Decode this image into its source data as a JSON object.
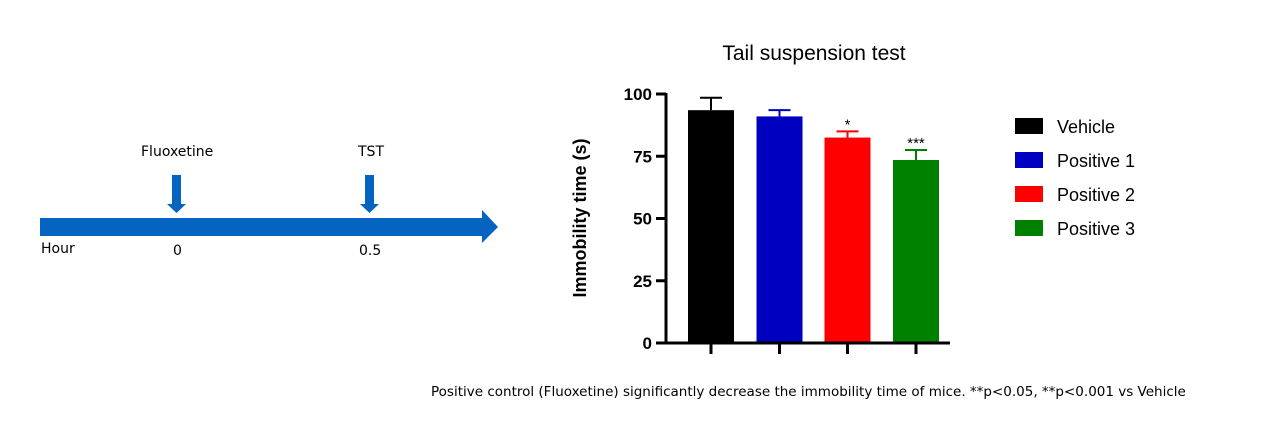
{
  "timeline": {
    "axis_label": "Hour",
    "events": [
      {
        "label": "Fluoxetine",
        "time": "0"
      },
      {
        "label": "TST",
        "time": "0.5"
      }
    ],
    "color": "#0563C1"
  },
  "chart_data": {
    "type": "bar",
    "title": "Tail suspension test",
    "ylabel": "Immobility time (s)",
    "xlabel": "",
    "ylim": [
      0,
      100
    ],
    "yticks": [
      "0",
      "25",
      "50",
      "75",
      "100"
    ],
    "categories": [
      "Vehicle",
      "Positive 1",
      "Positive 2",
      "Positive 3"
    ],
    "values": [
      93.5,
      91,
      82.5,
      73.5
    ],
    "errors": [
      5,
      2.5,
      2.5,
      4
    ],
    "significance": [
      "",
      "",
      "*",
      "***"
    ],
    "colors": [
      "#000000",
      "#0000C0",
      "#FF0000",
      "#008000"
    ],
    "legend_position": "right"
  },
  "caption": "Positive control (Fluoxetine) significantly decrease the immobility time of mice. **p<0.05, **p<0.001 vs Vehicle"
}
